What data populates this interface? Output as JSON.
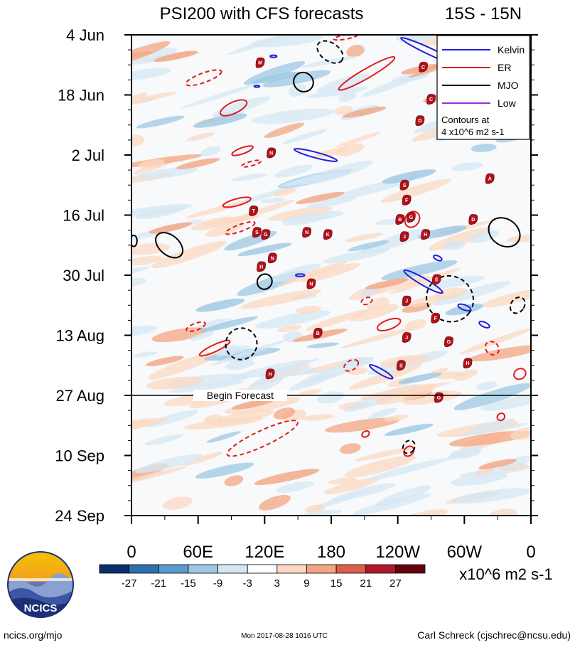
{
  "chart_data": {
    "type": "heatmap",
    "title": "PSI200 with CFS forecasts",
    "subtitle": "15S - 15N",
    "y_ticks": [
      {
        "label": "4 Jun",
        "day": 0
      },
      {
        "label": "18 Jun",
        "day": 14
      },
      {
        "label": "2 Jul",
        "day": 28
      },
      {
        "label": "16 Jul",
        "day": 42
      },
      {
        "label": "30 Jul",
        "day": 56
      },
      {
        "label": "13 Aug",
        "day": 70
      },
      {
        "label": "27 Aug",
        "day": 84
      },
      {
        "label": "10 Sep",
        "day": 98
      },
      {
        "label": "24 Sep",
        "day": 112
      }
    ],
    "ylim_days": [
      0,
      112
    ],
    "x_ticks": [
      {
        "label": "0",
        "lon": 0
      },
      {
        "label": "60E",
        "lon": 60
      },
      {
        "label": "120E",
        "lon": 120
      },
      {
        "label": "180",
        "lon": 180
      },
      {
        "label": "120W",
        "lon": 240
      },
      {
        "label": "60W",
        "lon": 300
      },
      {
        "label": "0",
        "lon": 360
      }
    ],
    "xlim_lon": [
      0,
      360
    ],
    "forecast_start_day": 84,
    "forecast_label": "Begin Forecast",
    "colorbar": {
      "levels": [
        "-27",
        "-21",
        "-15",
        "-9",
        "-3",
        "3",
        "9",
        "15",
        "21",
        "27"
      ],
      "colors": [
        "#08306b",
        "#2f6fae",
        "#5a9ccc",
        "#9dc8e3",
        "#d6e7f4",
        "#ffffff",
        "#fcd8c2",
        "#f3a583",
        "#dd5e4a",
        "#b2182b",
        "#67000d"
      ],
      "units": "x10^6 m2 s-1"
    },
    "legend": {
      "position": "top-right",
      "entries": [
        {
          "name": "Kelvin",
          "color": "#1f1fdd"
        },
        {
          "name": "ER",
          "color": "#e01b1b"
        },
        {
          "name": "MJO",
          "color": "#000000"
        },
        {
          "name": "Low",
          "color": "#9b30d8"
        }
      ],
      "note_line1": "Contours at",
      "note_line2": "4 x10^6 m2 s-1"
    },
    "anomaly_field": [
      {
        "lon": 40,
        "day": 5,
        "sign": "pos",
        "dlon": 40,
        "dday": 1.5
      },
      {
        "lon": 130,
        "day": 10,
        "sign": "neg",
        "dlon": 45,
        "dday": 1.5
      },
      {
        "lon": 260,
        "day": 8,
        "sign": "pos",
        "dlon": 35,
        "dday": 1.5
      },
      {
        "lon": 80,
        "day": 20,
        "sign": "neg",
        "dlon": 50,
        "dday": 2
      },
      {
        "lon": 210,
        "day": 18,
        "sign": "pos",
        "dlon": 40,
        "dday": 1.5
      },
      {
        "lon": 320,
        "day": 22,
        "sign": "neg",
        "dlon": 40,
        "dday": 1.5
      },
      {
        "lon": 60,
        "day": 30,
        "sign": "pos",
        "dlon": 40,
        "dday": 1.5
      },
      {
        "lon": 250,
        "day": 33,
        "sign": "neg",
        "dlon": 50,
        "dday": 2
      },
      {
        "lon": 170,
        "day": 38,
        "sign": "pos",
        "dlon": 45,
        "dday": 1.5
      },
      {
        "lon": 35,
        "day": 45,
        "sign": "pos",
        "dlon": 40,
        "dday": 1.5
      },
      {
        "lon": 280,
        "day": 46,
        "sign": "neg",
        "dlon": 45,
        "dday": 2
      },
      {
        "lon": 120,
        "day": 50,
        "sign": "neg",
        "dlon": 50,
        "dday": 1.5
      },
      {
        "lon": 230,
        "day": 58,
        "sign": "pos",
        "dlon": 40,
        "dday": 1.5
      },
      {
        "lon": 80,
        "day": 63,
        "sign": "neg",
        "dlon": 45,
        "dday": 2
      },
      {
        "lon": 300,
        "day": 64,
        "sign": "neg",
        "dlon": 35,
        "dday": 2
      },
      {
        "lon": 170,
        "day": 70,
        "sign": "pos",
        "dlon": 50,
        "dday": 1.5
      },
      {
        "lon": 30,
        "day": 76,
        "sign": "pos",
        "dlon": 35,
        "dday": 1.5
      },
      {
        "lon": 260,
        "day": 80,
        "sign": "neg",
        "dlon": 40,
        "dday": 1.5
      },
      {
        "lon": 110,
        "day": 86,
        "sign": "pos",
        "dlon": 40,
        "dday": 1.5
      },
      {
        "lon": 250,
        "day": 92,
        "sign": "neg",
        "dlon": 45,
        "dday": 1.5
      },
      {
        "lon": 140,
        "day": 103,
        "sign": "pos",
        "dlon": 60,
        "dday": 2
      },
      {
        "lon": 330,
        "day": 100,
        "sign": "pos",
        "dlon": 35,
        "dday": 1.5
      }
    ],
    "wave_contours": [
      {
        "wave": "ER",
        "dashed": true,
        "lon": 65,
        "day": 10,
        "dlon": 34,
        "dday": 2.2,
        "tilt": -20
      },
      {
        "wave": "ER",
        "dashed": false,
        "lon": 92,
        "day": 17,
        "dlon": 26,
        "dday": 2.6,
        "tilt": -25
      },
      {
        "wave": "ER",
        "dashed": false,
        "lon": 100,
        "day": 27,
        "dlon": 20,
        "dday": 1.4,
        "tilt": -20
      },
      {
        "wave": "ER",
        "dashed": true,
        "lon": 108,
        "day": 30,
        "dlon": 18,
        "dday": 1.0,
        "tilt": -15
      },
      {
        "wave": "ER",
        "dashed": false,
        "lon": 95,
        "day": 39,
        "dlon": 26,
        "dday": 1.6,
        "tilt": -15
      },
      {
        "wave": "ER",
        "dashed": true,
        "lon": 98,
        "day": 45,
        "dlon": 28,
        "dday": 1.6,
        "tilt": -20
      },
      {
        "wave": "ER",
        "dashed": false,
        "lon": 212,
        "day": 9,
        "dlon": 58,
        "dday": 2.2,
        "tilt": -30
      },
      {
        "wave": "ER",
        "dashed": false,
        "lon": 253,
        "day": 43,
        "dlon": 15,
        "dday": 3.2,
        "tilt": -55
      },
      {
        "wave": "ER",
        "dashed": false,
        "lon": 232,
        "day": 67.5,
        "dlon": 22,
        "dday": 2.2,
        "tilt": -20
      },
      {
        "wave": "ER",
        "dashed": true,
        "lon": 212,
        "day": 62,
        "dlon": 10,
        "dday": 1.5,
        "tilt": -20
      },
      {
        "wave": "ER",
        "dashed": true,
        "lon": 58,
        "day": 68,
        "dlon": 18,
        "dday": 1.6,
        "tilt": -20
      },
      {
        "wave": "ER",
        "dashed": false,
        "lon": 75,
        "day": 73,
        "dlon": 30,
        "dday": 1.6,
        "tilt": -25
      },
      {
        "wave": "ER",
        "dashed": true,
        "lon": 198,
        "day": 77,
        "dlon": 14,
        "dday": 2.2,
        "tilt": -30
      },
      {
        "wave": "ER",
        "dashed": true,
        "lon": 325,
        "day": 73,
        "dlon": 11,
        "dday": 3.4,
        "tilt": -50
      },
      {
        "wave": "ER",
        "dashed": false,
        "lon": 350,
        "day": 79,
        "dlon": 11,
        "dday": 2.4,
        "tilt": -30
      },
      {
        "wave": "ER",
        "dashed": true,
        "lon": 118,
        "day": 94,
        "dlon": 70,
        "dday": 3.6,
        "tilt": -25
      },
      {
        "wave": "ER",
        "dashed": false,
        "lon": 211,
        "day": 93,
        "dlon": 7,
        "dday": 1.3,
        "tilt": -30
      },
      {
        "wave": "ER",
        "dashed": false,
        "lon": 250,
        "day": 97,
        "dlon": 10,
        "dday": 2.0,
        "tilt": -45
      },
      {
        "wave": "ER",
        "dashed": false,
        "lon": 333,
        "day": 89,
        "dlon": 7,
        "dday": 1.6,
        "tilt": -35
      },
      {
        "wave": "ER",
        "dashed": true,
        "lon": 193,
        "day": 0.5,
        "dlon": 22,
        "dday": 1.0,
        "tilt": -10
      },
      {
        "wave": "MJO",
        "dashed": false,
        "lon": 34,
        "day": 49,
        "dlon": 28,
        "dday": 4.6,
        "tilt": 40
      },
      {
        "wave": "MJO",
        "dashed": false,
        "lon": 2,
        "day": 48,
        "dlon": 6,
        "dday": 2.6,
        "tilt": 0
      },
      {
        "wave": "MJO",
        "dashed": false,
        "lon": 155,
        "day": 11,
        "dlon": 18,
        "dday": 4.4,
        "tilt": 35
      },
      {
        "wave": "MJO",
        "dashed": true,
        "lon": 179,
        "day": 4,
        "dlon": 26,
        "dday": 4.2,
        "tilt": 35
      },
      {
        "wave": "MJO",
        "dashed": false,
        "lon": 336,
        "day": 46,
        "dlon": 30,
        "dday": 6.2,
        "tilt": 35
      },
      {
        "wave": "MJO",
        "dashed": false,
        "lon": 120,
        "day": 57.5,
        "dlon": 13,
        "dday": 3.6,
        "tilt": 35
      },
      {
        "wave": "MJO",
        "dashed": true,
        "lon": 99,
        "day": 72,
        "dlon": 28,
        "dday": 7.4,
        "tilt": 35
      },
      {
        "wave": "MJO",
        "dashed": true,
        "lon": 287,
        "day": 61.5,
        "dlon": 43,
        "dday": 10.5,
        "tilt": 35
      },
      {
        "wave": "MJO",
        "dashed": true,
        "lon": 348,
        "day": 63,
        "dlon": 12,
        "dday": 4.0,
        "tilt": 35
      },
      {
        "wave": "MJO",
        "dashed": true,
        "lon": 250,
        "day": 96,
        "dlon": 10,
        "dday": 3.2,
        "tilt": 35
      },
      {
        "wave": "Kelvin",
        "dashed": false,
        "lon": 166,
        "day": 28,
        "dlon": 40,
        "dday": 1.3,
        "tilt": 15
      },
      {
        "wave": "Kelvin",
        "dashed": false,
        "lon": 270,
        "day": 4,
        "dlon": 60,
        "dday": 1.5,
        "tilt": 25
      },
      {
        "wave": "Kelvin",
        "dashed": false,
        "lon": 263,
        "day": 57.5,
        "dlon": 40,
        "dday": 1.6,
        "tilt": 30
      },
      {
        "wave": "Kelvin",
        "dashed": false,
        "lon": 225,
        "day": 78.5,
        "dlon": 24,
        "dday": 1.2,
        "tilt": 30
      },
      {
        "wave": "Kelvin",
        "dashed": false,
        "lon": 300,
        "day": 63.5,
        "dlon": 12,
        "dday": 1.2,
        "tilt": 20
      },
      {
        "wave": "Kelvin",
        "dashed": false,
        "lon": 318,
        "day": 67.5,
        "dlon": 10,
        "dday": 1.1,
        "tilt": 25
      },
      {
        "wave": "Kelvin",
        "dashed": false,
        "lon": 152,
        "day": 56,
        "dlon": 8,
        "dday": 0.6,
        "tilt": 0
      },
      {
        "wave": "Kelvin",
        "dashed": false,
        "lon": 276,
        "day": 52,
        "dlon": 8,
        "dday": 1.0,
        "tilt": 25
      },
      {
        "wave": "Kelvin",
        "dashed": false,
        "lon": 113,
        "day": 12,
        "dlon": 5,
        "dday": 0.4,
        "tilt": 0
      },
      {
        "wave": "Kelvin",
        "dashed": false,
        "lon": 128,
        "day": 5,
        "dlon": 6,
        "dday": 0.5,
        "tilt": 0
      }
    ],
    "storm_markers": [
      {
        "letter": "M",
        "lon": 116,
        "day": 6.5
      },
      {
        "letter": "C",
        "lon": 263,
        "day": 7.5
      },
      {
        "letter": "C",
        "lon": 270,
        "day": 15
      },
      {
        "letter": "D",
        "lon": 260,
        "day": 20
      },
      {
        "letter": "N",
        "lon": 126,
        "day": 27.5
      },
      {
        "letter": "A",
        "lon": 323,
        "day": 33.5
      },
      {
        "letter": "S",
        "lon": 246,
        "day": 35
      },
      {
        "letter": "F",
        "lon": 248,
        "day": 38.5
      },
      {
        "letter": "T",
        "lon": 110,
        "day": 41
      },
      {
        "letter": "G",
        "lon": 252,
        "day": 42.5
      },
      {
        "letter": "B",
        "lon": 242,
        "day": 43
      },
      {
        "letter": "D",
        "lon": 308,
        "day": 43
      },
      {
        "letter": "S",
        "lon": 113,
        "day": 46
      },
      {
        "letter": "G",
        "lon": 121,
        "day": 46.5
      },
      {
        "letter": "N",
        "lon": 158,
        "day": 46
      },
      {
        "letter": "K",
        "lon": 177,
        "day": 46.5
      },
      {
        "letter": "J",
        "lon": 246,
        "day": 47
      },
      {
        "letter": "H",
        "lon": 265,
        "day": 46.5
      },
      {
        "letter": "N",
        "lon": 127,
        "day": 52
      },
      {
        "letter": "H",
        "lon": 117,
        "day": 54
      },
      {
        "letter": "N",
        "lon": 162,
        "day": 58
      },
      {
        "letter": "E",
        "lon": 275,
        "day": 57
      },
      {
        "letter": "J",
        "lon": 248,
        "day": 62
      },
      {
        "letter": "F",
        "lon": 274,
        "day": 66
      },
      {
        "letter": "B",
        "lon": 168,
        "day": 69.5
      },
      {
        "letter": "J",
        "lon": 248,
        "day": 70.5
      },
      {
        "letter": "G",
        "lon": 286,
        "day": 71.5
      },
      {
        "letter": "S",
        "lon": 243,
        "day": 77
      },
      {
        "letter": "H",
        "lon": 303,
        "day": 76.5
      },
      {
        "letter": "H",
        "lon": 125,
        "day": 79
      },
      {
        "letter": "F",
        "lon": 125,
        "day": 84
      },
      {
        "letter": "G",
        "lon": 277,
        "day": 84.5
      }
    ]
  },
  "branding": {
    "logo_text": "NCICS",
    "site": "ncics.org/mjo",
    "timestamp": "Mon 2017-08-28 1016 UTC",
    "author": "Carl Schreck (cjschrec@ncsu.edu)"
  }
}
